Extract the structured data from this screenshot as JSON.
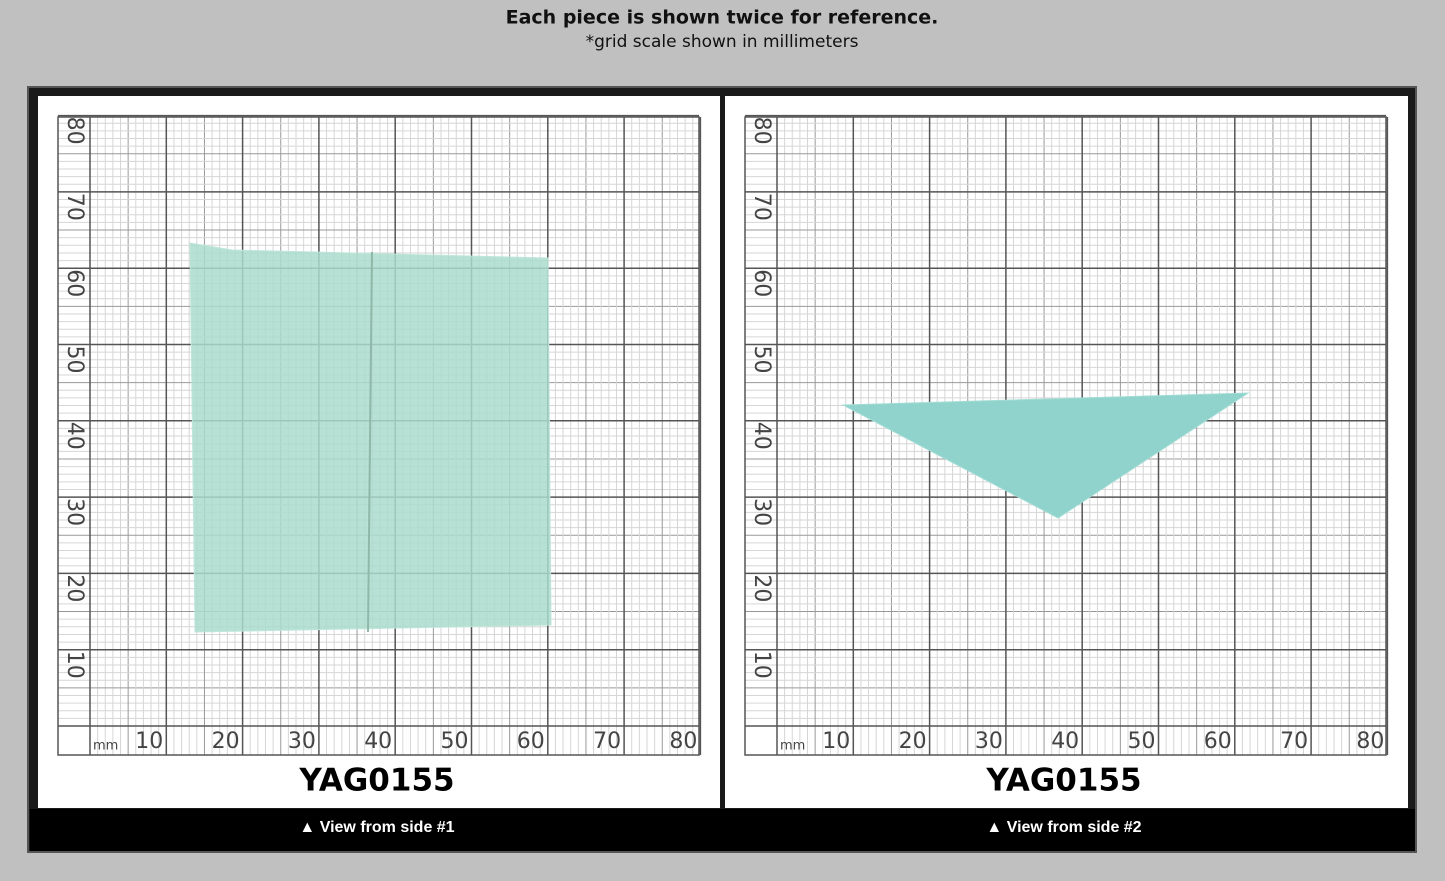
{
  "header": {
    "title": "Each piece is shown twice for reference.",
    "subtitle": "*grid scale shown in millimeters"
  },
  "panels": [
    {
      "grid": {
        "unit": "mm",
        "x_labels": [
          10,
          20,
          30,
          40,
          50,
          60,
          70,
          80
        ],
        "y_labels": [
          10,
          20,
          30,
          40,
          50,
          60,
          70,
          80
        ]
      },
      "label": "YAG0155",
      "caption": "▲ View from side #1"
    },
    {
      "grid": {
        "unit": "mm",
        "x_labels": [
          10,
          20,
          30,
          40,
          50,
          60,
          70,
          80
        ],
        "y_labels": [
          10,
          20,
          30,
          40,
          50,
          60,
          70,
          80
        ]
      },
      "label": "YAG0155",
      "caption": "▲ View from side #2"
    }
  ]
}
